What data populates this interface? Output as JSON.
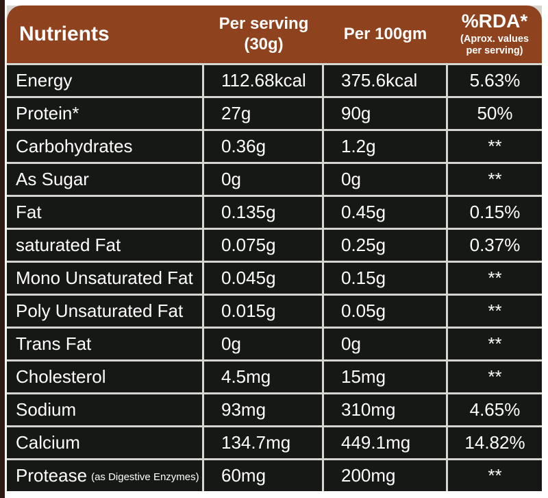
{
  "table": {
    "header": {
      "nutrients": "Nutrients",
      "per_serving_line1": "Per serving",
      "per_serving_line2": "(30g)",
      "per_100gm": "Per 100gm",
      "rda_line1": "%RDA*",
      "rda_line2": "(Aprox. values",
      "rda_line3": "per serving)"
    },
    "rows": [
      {
        "nutrient": "Energy",
        "note": "",
        "per_serving": "112.68kcal",
        "per_100gm": "375.6kcal",
        "rda": "5.63%"
      },
      {
        "nutrient": "Protein*",
        "note": "",
        "per_serving": "27g",
        "per_100gm": "90g",
        "rda": "50%"
      },
      {
        "nutrient": "Carbohydrates",
        "note": "",
        "per_serving": "0.36g",
        "per_100gm": "1.2g",
        "rda": "**"
      },
      {
        "nutrient": "As Sugar",
        "note": "",
        "per_serving": "0g",
        "per_100gm": "0g",
        "rda": "**"
      },
      {
        "nutrient": "Fat",
        "note": "",
        "per_serving": "0.135g",
        "per_100gm": "0.45g",
        "rda": "0.15%"
      },
      {
        "nutrient": "saturated Fat",
        "note": "",
        "per_serving": "0.075g",
        "per_100gm": "0.25g",
        "rda": "0.37%"
      },
      {
        "nutrient": "Mono Unsaturated Fat",
        "note": "",
        "per_serving": "0.045g",
        "per_100gm": "0.15g",
        "rda": "**"
      },
      {
        "nutrient": "Poly Unsaturated Fat",
        "note": "",
        "per_serving": "0.015g",
        "per_100gm": "0.05g",
        "rda": "**"
      },
      {
        "nutrient": "Trans Fat",
        "note": "",
        "per_serving": "0g",
        "per_100gm": "0g",
        "rda": "**"
      },
      {
        "nutrient": "Cholesterol",
        "note": "",
        "per_serving": "4.5mg",
        "per_100gm": "15mg",
        "rda": "**"
      },
      {
        "nutrient": "Sodium",
        "note": "",
        "per_serving": "93mg",
        "per_100gm": "310mg",
        "rda": "4.65%"
      },
      {
        "nutrient": "Calcium",
        "note": "",
        "per_serving": "134.7mg",
        "per_100gm": "449.1mg",
        "rda": "14.82%"
      },
      {
        "nutrient": "Protease",
        "note": "(as Digestive Enzymes)",
        "per_serving": "60mg",
        "per_100gm": "200mg",
        "rda": "**"
      }
    ]
  },
  "colors": {
    "header_bg": "#8e421d",
    "row_bg": "#161815",
    "divider": "#d8d6d1",
    "text": "#ffffff",
    "left_strip": "#2e1a12"
  }
}
